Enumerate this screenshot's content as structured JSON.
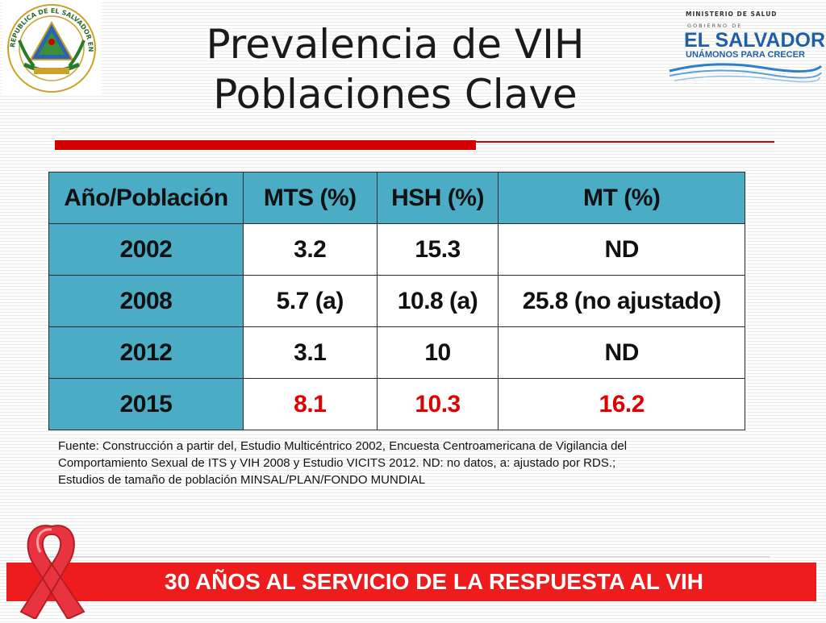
{
  "header": {
    "title_line1": "Prevalencia de VIH",
    "title_line2": "Poblaciones Clave"
  },
  "logos": {
    "left_seal_text": "REPUBLICA DE EL SALVADOR EN LA AMERICA CENTRAL",
    "ministry": "MINISTERIO DE SALUD",
    "gobierno": "GOBIERNO DE",
    "country": "EL SALVADOR",
    "slogan": "UNÁMONOS PARA CRECER"
  },
  "table": {
    "headers": [
      "Año/Población",
      "MTS (%)",
      "HSH (%)",
      "MT (%)"
    ],
    "rows": [
      {
        "year": "2002",
        "mts": "3.2",
        "hsh": "15.3",
        "mt": "ND"
      },
      {
        "year": "2008",
        "mts": "5.7 (a)",
        "hsh": "10.8 (a)",
        "mt": "25.8 (no ajustado)"
      },
      {
        "year": "2012",
        "mts": "3.1",
        "hsh": "10",
        "mt": "ND"
      },
      {
        "year": "2015",
        "mts": "8.1",
        "hsh": "10.3",
        "mt": "16.2"
      }
    ]
  },
  "source": {
    "line1": "Fuente: Construcción a partir del, Estudio Multicéntrico 2002, Encuesta Centroamericana de Vigilancia del",
    "line2": "Comportamiento Sexual de ITS y VIH 2008 y Estudio VICITS 2012. ND: no datos, a: ajustado por RDS.;",
    "line3": "Estudios de tamaño de población MINSAL/PLAN/FONDO MUNDIAL"
  },
  "footer": {
    "banner": "30 AÑOS AL SERVICIO DE LA RESPUESTA AL VIH"
  },
  "colors": {
    "accent_red": "#ee1c1c",
    "table_header": "#4bacc6",
    "highlight_red": "#e00000"
  }
}
